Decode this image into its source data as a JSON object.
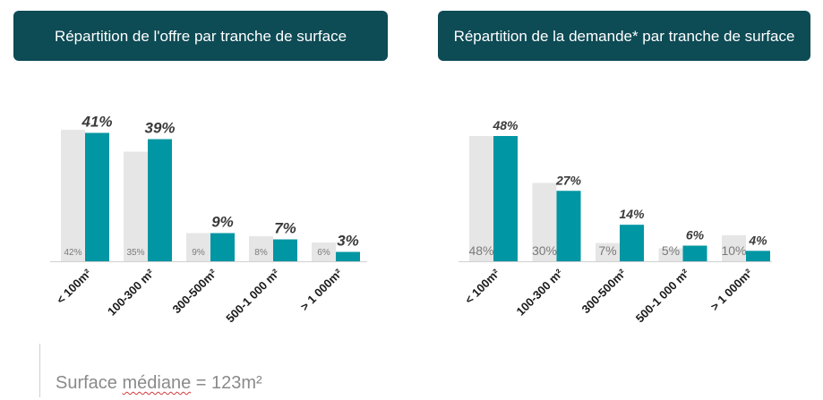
{
  "colors": {
    "header_bg": "#0d4b55",
    "series_primary": "#0096a3",
    "series_secondary": "#e6e6e6"
  },
  "panels": [
    {
      "header": "Répartition de l'offre par tranche de surface"
    },
    {
      "header": "Répartition de la demande* par tranche de surface"
    }
  ],
  "footer": {
    "prefix": "Surface ",
    "underlined": "médiane",
    "suffix": " = 123m²"
  },
  "chart_data": [
    {
      "type": "bar",
      "title": "Répartition de l'offre par tranche de surface",
      "categories": [
        "< 100m²",
        "100-300 m²",
        "300-500m²",
        "500-1 000 m²",
        "> 1 000m²"
      ],
      "series": [
        {
          "values": [
            42,
            35,
            9,
            8,
            6
          ],
          "labels": [
            "42%",
            "35%",
            "9%",
            "8%",
            "6%"
          ]
        },
        {
          "values": [
            41,
            39,
            9,
            7,
            3
          ],
          "labels": [
            "41%",
            "39%",
            "9%",
            "7%",
            "3%"
          ]
        }
      ],
      "ylim": [
        0,
        42
      ],
      "grid": false
    },
    {
      "type": "bar",
      "title": "Répartition de la demande* par tranche de surface",
      "categories": [
        "< 100m²",
        "100-300 m²",
        "300-500m²",
        "500-1 000 m²",
        "> 1 000m²"
      ],
      "series": [
        {
          "values": [
            48,
            30,
            7,
            5,
            10
          ],
          "labels": [
            "48%",
            "30%",
            "7%",
            "5%",
            "10%"
          ]
        },
        {
          "values": [
            48,
            27,
            14,
            6,
            4
          ],
          "labels": [
            "48%",
            "27%",
            "14%",
            "6%",
            "4%"
          ]
        }
      ],
      "ylim": [
        0,
        48
      ],
      "grid": false
    }
  ]
}
